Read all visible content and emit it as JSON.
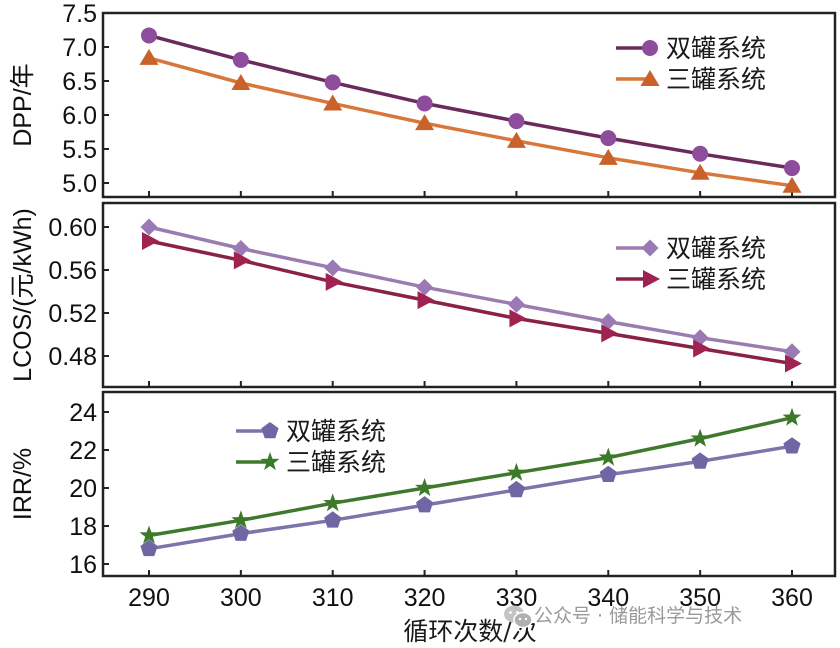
{
  "chart_data": [
    {
      "type": "line",
      "id": "dpp",
      "title": "",
      "ylabel": "DPP/年",
      "xlabel": "循环次数/次",
      "x": [
        290,
        300,
        310,
        320,
        330,
        340,
        350,
        360
      ],
      "ylim": [
        4.78,
        7.5
      ],
      "yticks": [
        5.0,
        5.5,
        6.0,
        6.5,
        7.0,
        7.5
      ],
      "ytick_labels": [
        "5.0",
        "5.5",
        "6.0",
        "6.5",
        "7.0",
        "7.5"
      ],
      "legend_position": "top-right",
      "series": [
        {
          "name": "双罐系统",
          "marker": "circle",
          "line_color": "#6b2a5c",
          "marker_color": "#8e4d9c",
          "values": [
            7.17,
            6.81,
            6.48,
            6.17,
            5.91,
            5.66,
            5.43,
            5.22
          ]
        },
        {
          "name": "三罐系统",
          "marker": "triangle",
          "line_color": "#d8773a",
          "marker_color": "#c9622a",
          "values": [
            6.84,
            6.47,
            6.17,
            5.88,
            5.62,
            5.37,
            5.15,
            4.96
          ]
        }
      ]
    },
    {
      "type": "line",
      "id": "lcos",
      "title": "",
      "ylabel": "LCOS/(元/kWh)",
      "xlabel": "循环次数/次",
      "x": [
        290,
        300,
        310,
        320,
        330,
        340,
        350,
        360
      ],
      "ylim": [
        0.458,
        0.621
      ],
      "yticks": [
        0.48,
        0.52,
        0.56,
        0.6
      ],
      "ytick_labels": [
        "0.48",
        "0.52",
        "0.56",
        "0.60"
      ],
      "legend_position": "top-right",
      "series": [
        {
          "name": "双罐系统",
          "marker": "diamond",
          "line_color": "#9b7cb0",
          "marker_color": "#9a79b5",
          "values": [
            0.6,
            0.58,
            0.562,
            0.544,
            0.528,
            0.512,
            0.497,
            0.484
          ]
        },
        {
          "name": "三罐系统",
          "marker": "arrow-right",
          "line_color": "#8a2146",
          "marker_color": "#a02250",
          "values": [
            0.587,
            0.569,
            0.549,
            0.532,
            0.515,
            0.501,
            0.487,
            0.473
          ]
        }
      ]
    },
    {
      "type": "line",
      "id": "irr",
      "title": "",
      "ylabel": "IRR/%",
      "xlabel": "循环次数/次",
      "x": [
        290,
        300,
        310,
        320,
        330,
        340,
        350,
        360
      ],
      "ylim": [
        15.4,
        25.0
      ],
      "yticks": [
        16,
        18,
        20,
        22,
        24
      ],
      "ytick_labels": [
        "16",
        "18",
        "20",
        "22",
        "24"
      ],
      "xtick_labels": [
        "290",
        "300",
        "310",
        "320",
        "330",
        "340",
        "350",
        "360"
      ],
      "legend_position": "top-left",
      "series": [
        {
          "name": "双罐系统",
          "marker": "pentagon",
          "line_color": "#7d74aa",
          "marker_color": "#6f67a3",
          "values": [
            16.8,
            17.6,
            18.3,
            19.1,
            19.9,
            20.7,
            21.4,
            22.2
          ]
        },
        {
          "name": "三罐系统",
          "marker": "star",
          "line_color": "#3f7a2c",
          "marker_color": "#3c7a2a",
          "values": [
            17.5,
            18.3,
            19.2,
            20.0,
            20.8,
            21.6,
            22.6,
            23.7
          ]
        }
      ]
    }
  ],
  "xaxis": {
    "title": "循环次数/次",
    "range": [
      285,
      365
    ],
    "tick_labels": [
      "290",
      "300",
      "310",
      "320",
      "330",
      "340",
      "350",
      "360"
    ],
    "ticks": [
      290,
      300,
      310,
      320,
      330,
      340,
      350,
      360
    ]
  },
  "watermark": {
    "icon": "wechat-icon",
    "text": "公众号 · 储能科学与技术"
  }
}
